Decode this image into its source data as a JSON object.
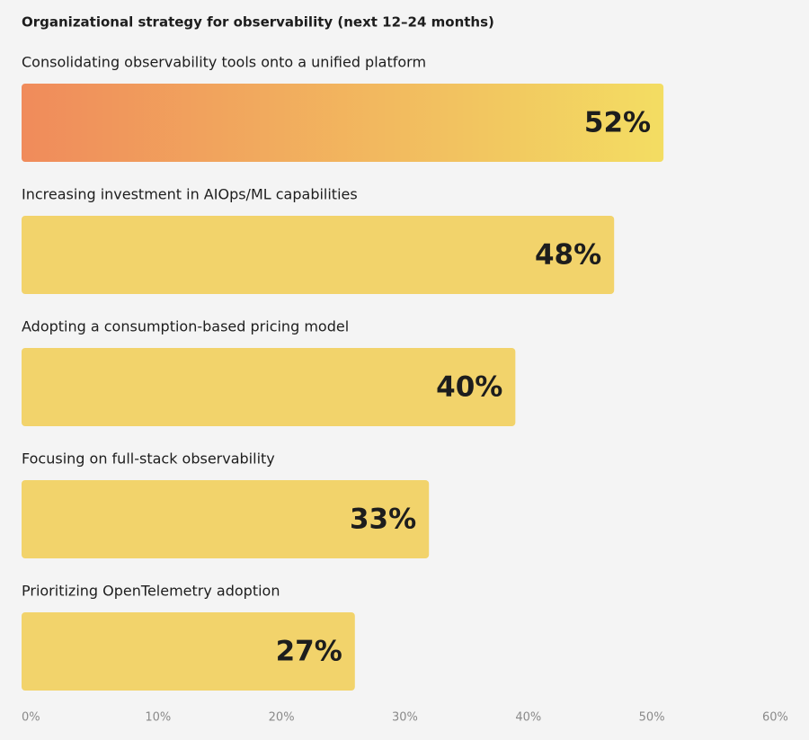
{
  "chart_data": {
    "type": "hbar",
    "title": "Organizational strategy for observability (next 12–24 months)",
    "categories": [
      "Consolidating observability tools onto a unified platform",
      "Increasing investment in AIOps/ML capabilities",
      "Adopting a consumption-based pricing model",
      "Focusing on full-stack observability",
      "Prioritizing OpenTelemetry adoption"
    ],
    "values": [
      52,
      48,
      40,
      33,
      27
    ],
    "value_labels": [
      "52%",
      "48%",
      "40%",
      "33%",
      "27%"
    ],
    "color": "#f2d36b",
    "highlight": {
      "index": 0,
      "colors": [
        "#f08b5b",
        "#f3dd62"
      ]
    },
    "xlim": [
      0,
      60
    ],
    "xticks": [
      {
        "value": 0,
        "label": "0%"
      },
      {
        "value": 10,
        "label": "10%"
      },
      {
        "value": 20,
        "label": "20%"
      },
      {
        "value": 30,
        "label": "30%"
      },
      {
        "value": 40,
        "label": "40%"
      },
      {
        "value": 50,
        "label": "50%"
      },
      {
        "value": 60,
        "label": "60%"
      }
    ]
  }
}
